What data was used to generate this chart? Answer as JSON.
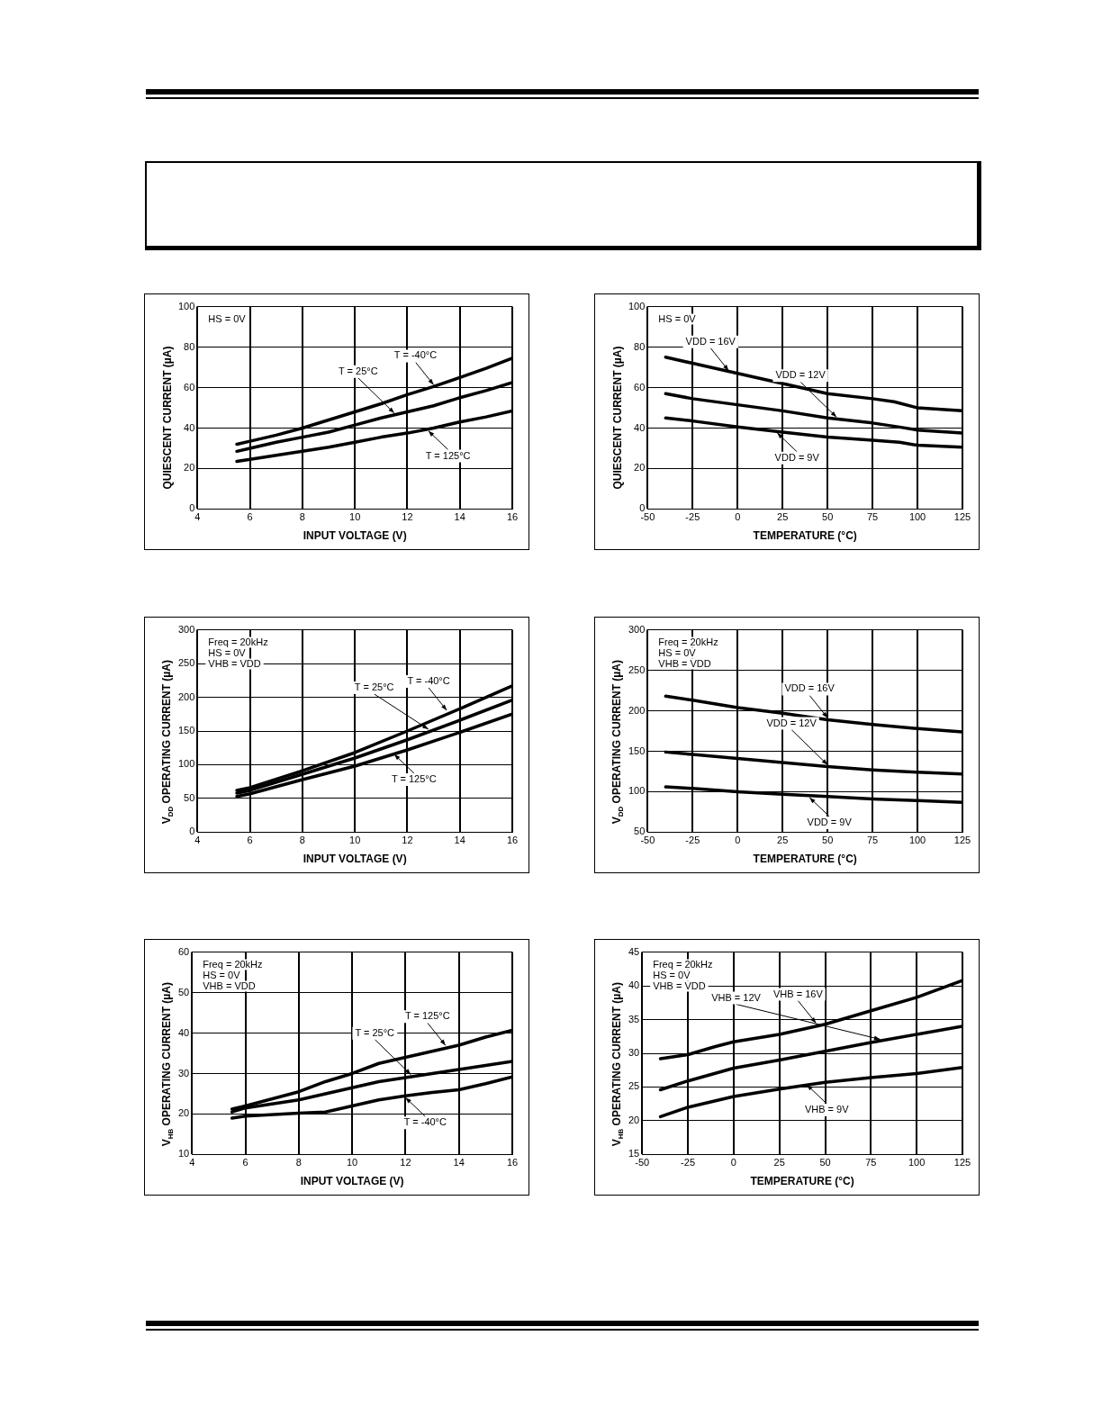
{
  "chart_data": [
    {
      "type": "line",
      "xlabel": "INPUT VOLTAGE (V)",
      "ylabel": "QUIESCENT CURRENT (µA)",
      "xlim": [
        4,
        16
      ],
      "xticks": [
        4,
        6,
        8,
        10,
        12,
        14,
        16
      ],
      "ylim": [
        0,
        100
      ],
      "yticks": [
        0,
        20,
        40,
        60,
        80,
        100
      ],
      "grid": true,
      "marker": "none",
      "line_style": "solid",
      "x": [
        5.5,
        6,
        7,
        8,
        9,
        10,
        11,
        12,
        13,
        14,
        15,
        16
      ],
      "series": [
        {
          "color": "#000000",
          "values": [
            32,
            33.5,
            36.5,
            40,
            44,
            48,
            52,
            56.5,
            60.5,
            65,
            69.5,
            74.5
          ]
        },
        {
          "color": "#000000",
          "values": [
            28.5,
            30,
            33,
            35.5,
            38,
            41.5,
            45,
            48,
            51,
            55,
            58.5,
            62.5
          ]
        },
        {
          "color": "#000000",
          "values": [
            23.5,
            24.5,
            26.5,
            28.5,
            30.5,
            33,
            35.5,
            37.5,
            40,
            43,
            45.5,
            48.5
          ]
        }
      ],
      "annotations": [
        {
          "text": "T = -40°C",
          "x": 13,
          "y": 60.5
        },
        {
          "text": "T = 25°C",
          "x": 11.5,
          "y": 46.5
        },
        {
          "text": "T = 125°C",
          "x": 12.8,
          "y": 39.5
        },
        "HS = 0V"
      ]
    },
    {
      "type": "line",
      "xlabel": "TEMPERATURE (°C)",
      "ylabel": "QUIESCENT CURRENT (µA)",
      "xlim": [
        -50,
        125
      ],
      "xticks": [
        -50,
        -25,
        0,
        25,
        50,
        75,
        100,
        125
      ],
      "ylim": [
        0,
        100
      ],
      "yticks": [
        0,
        20,
        40,
        60,
        80,
        100
      ],
      "grid": true,
      "marker": "none",
      "line_style": "solid",
      "series": [
        {
          "color": "#000000",
          "x": [
            -40,
            -25,
            0,
            25,
            50,
            75,
            87,
            100,
            125
          ],
          "values": [
            75,
            72,
            67,
            62,
            57,
            54.5,
            53,
            50,
            48.5
          ]
        },
        {
          "color": "#000000",
          "x": [
            -40,
            -25,
            0,
            25,
            50,
            75,
            90,
            100,
            125
          ],
          "values": [
            57,
            54.5,
            51.5,
            48.5,
            45,
            42.5,
            40.5,
            39,
            37.5
          ]
        },
        {
          "color": "#000000",
          "x": [
            -40,
            -25,
            0,
            25,
            50,
            75,
            90,
            100,
            125
          ],
          "values": [
            45,
            43.5,
            40.5,
            38,
            35.5,
            34,
            33,
            31.5,
            30.5
          ]
        }
      ],
      "annotations": [
        {
          "text": "VDD = 16V",
          "x": -5,
          "y": 67.5
        },
        {
          "text": "VDD = 12V",
          "x": 55,
          "y": 44.5
        },
        {
          "text": "VDD = 9V",
          "x": 22,
          "y": 38.5
        },
        "HS = 0V"
      ]
    },
    {
      "type": "line",
      "xlabel": "INPUT VOLTAGE (V)",
      "ylabel": "V$_{DD}$ OPERATING CURRENT (µA)",
      "xlim": [
        4,
        16
      ],
      "xticks": [
        4,
        6,
        8,
        10,
        12,
        14,
        16
      ],
      "ylim": [
        0,
        300
      ],
      "yticks": [
        0,
        50,
        100,
        150,
        200,
        250,
        300
      ],
      "grid": true,
      "marker": "none",
      "line_style": "solid",
      "x": [
        5.5,
        6,
        8,
        10,
        12,
        14,
        16
      ],
      "series": [
        {
          "color": "#000000",
          "values": [
            62,
            66,
            91,
            118,
            150,
            183,
            217
          ]
        },
        {
          "color": "#000000",
          "values": [
            58,
            62,
            86,
            110,
            137,
            166,
            196
          ]
        },
        {
          "color": "#000000",
          "values": [
            53,
            57,
            78,
            98,
            122,
            148,
            175
          ]
        }
      ],
      "annotations": [
        {
          "text": "T = -40°C",
          "x": 13.5,
          "y": 178
        },
        {
          "text": "T = 25°C",
          "x": 12.8,
          "y": 150
        },
        {
          "text": "T = 125°C",
          "x": 11.5,
          "y": 118
        },
        "Freq = 20kHz",
        "HS = 0V",
        "VHB = VDD"
      ]
    },
    {
      "type": "line",
      "xlabel": "TEMPERATURE (°C)",
      "ylabel": "V$_{DD}$ OPERATING CURRENT (µA)",
      "xlim": [
        -50,
        125
      ],
      "xticks": [
        -50,
        -25,
        0,
        25,
        50,
        75,
        100,
        125
      ],
      "ylim": [
        50,
        300
      ],
      "yticks": [
        50,
        100,
        150,
        200,
        250,
        300
      ],
      "grid": true,
      "marker": "none",
      "line_style": "solid",
      "x": [
        -40,
        -25,
        0,
        25,
        50,
        75,
        100,
        125
      ],
      "series": [
        {
          "color": "#000000",
          "values": [
            218,
            213,
            204,
            197,
            189,
            183,
            178,
            174
          ]
        },
        {
          "color": "#000000",
          "values": [
            149,
            146,
            141,
            136,
            131,
            127,
            124,
            122
          ]
        },
        {
          "color": "#000000",
          "values": [
            106,
            104,
            100,
            97,
            94,
            91,
            89,
            87
          ]
        }
      ],
      "annotations": [
        {
          "text": "VDD = 16V",
          "x": 50,
          "y": 189
        },
        {
          "text": "VDD = 12V",
          "x": 50,
          "y": 131
        },
        {
          "text": "VDD = 9V",
          "x": 40,
          "y": 95
        },
        "Freq = 20kHz",
        "HS = 0V",
        "VHB = VDD"
      ]
    },
    {
      "type": "line",
      "xlabel": "INPUT VOLTAGE (V)",
      "ylabel": "V$_{HB}$ OPERATING CURRENT (µA)",
      "xlim": [
        4,
        16
      ],
      "xticks": [
        4,
        6,
        8,
        10,
        12,
        14,
        16
      ],
      "ylim": [
        10,
        60
      ],
      "yticks": [
        10,
        20,
        30,
        40,
        50,
        60
      ],
      "grid": true,
      "marker": "none",
      "line_style": "solid",
      "x": [
        5.5,
        6,
        8,
        9,
        10,
        11,
        12,
        13,
        14,
        15,
        16
      ],
      "series": [
        {
          "color": "#000000",
          "values": [
            21.2,
            22,
            25.5,
            28,
            30,
            32.5,
            34,
            35.5,
            37,
            39,
            40.7
          ]
        },
        {
          "color": "#000000",
          "values": [
            20.5,
            21.5,
            23.5,
            25,
            26.5,
            28,
            29,
            30,
            31,
            32,
            33
          ]
        },
        {
          "color": "#000000",
          "values": [
            19,
            19.5,
            20.2,
            20.5,
            22,
            23.5,
            24.5,
            25.3,
            26,
            27.5,
            29.2
          ]
        }
      ],
      "annotations": [
        {
          "text": "T = 125°C",
          "x": 13.5,
          "y": 36.5
        },
        {
          "text": "T = 25°C",
          "x": 12.2,
          "y": 29.3
        },
        {
          "text": "T = -40°C",
          "x": 12,
          "y": 24.5
        },
        "Freq = 20kHz",
        "HS = 0V",
        "VHB = VDD"
      ]
    },
    {
      "type": "line",
      "xlabel": "TEMPERATURE (°C)",
      "ylabel": "V$_{HB}$ OPERATING CURRENT (µA)",
      "xlim": [
        -50,
        125
      ],
      "xticks": [
        -50,
        -25,
        0,
        25,
        50,
        75,
        100,
        125
      ],
      "ylim": [
        15,
        45
      ],
      "yticks": [
        15,
        20,
        25,
        30,
        35,
        40,
        45
      ],
      "grid": true,
      "marker": "none",
      "line_style": "solid",
      "series": [
        {
          "color": "#000000",
          "x": [
            -40,
            -25,
            -10,
            0,
            25,
            50,
            75,
            100,
            125
          ],
          "values": [
            29.2,
            29.8,
            31,
            31.7,
            32.8,
            34.3,
            36.3,
            38.3,
            40.8
          ]
        },
        {
          "color": "#000000",
          "x": [
            -40,
            -25,
            0,
            25,
            50,
            75,
            100,
            125
          ],
          "values": [
            24.6,
            25.9,
            27.8,
            29,
            30.3,
            31.6,
            32.8,
            34
          ]
        },
        {
          "color": "#000000",
          "x": [
            -40,
            -25,
            0,
            25,
            50,
            75,
            100,
            125
          ],
          "values": [
            20.6,
            22,
            23.6,
            24.7,
            25.7,
            26.4,
            27,
            27.9
          ]
        }
      ],
      "annotations": [
        {
          "text": "VHB = 16V",
          "x": 45,
          "y": 34.2
        },
        {
          "text": "VHB = 12V",
          "x": 80,
          "y": 31.8
        },
        {
          "text": "VHB = 9V",
          "x": 40,
          "y": 25.6
        },
        "Freq = 20kHz",
        "HS = 0V",
        "VHB = VDD"
      ]
    }
  ]
}
